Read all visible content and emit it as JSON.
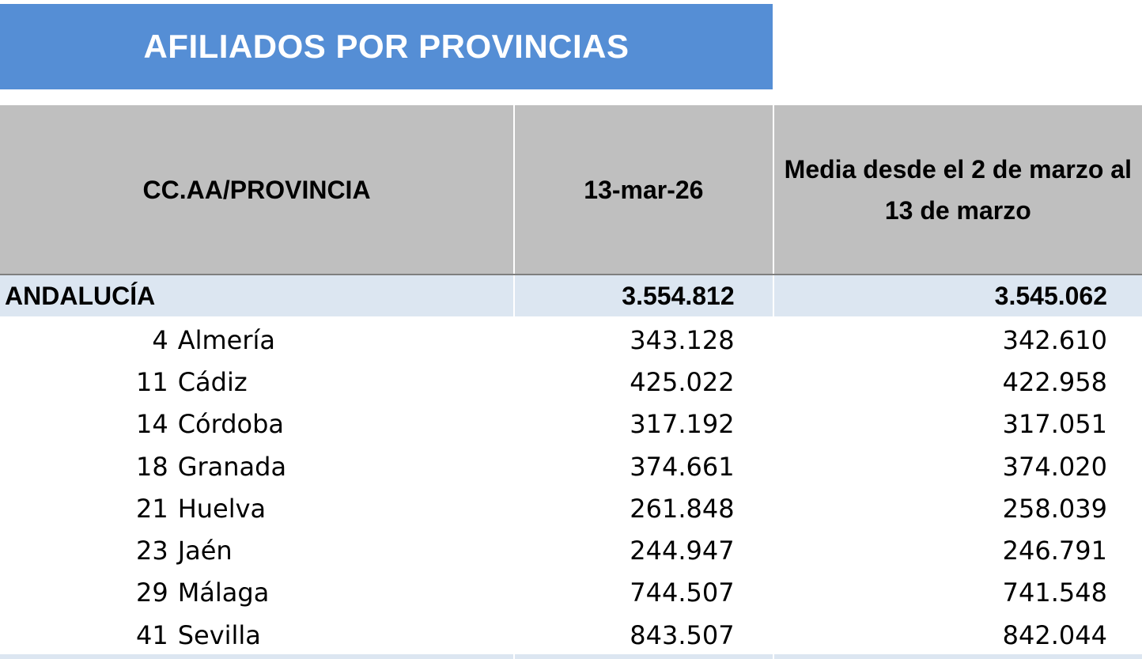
{
  "title": "AFILIADOS POR PROVINCIAS",
  "header": {
    "col1": "CC.AA/PROVINCIA",
    "col2": "13-mar-26",
    "col3": "Media desde el 2 de marzo al 13 de marzo"
  },
  "region": {
    "name": "ANDALUCÍA",
    "value_date": "3.554.812",
    "value_avg": "3.545.062"
  },
  "rows": [
    {
      "code": "4",
      "name": "Almería",
      "value_date": "343.128",
      "value_avg": "342.610"
    },
    {
      "code": "11",
      "name": "Cádiz",
      "value_date": "425.022",
      "value_avg": "422.958"
    },
    {
      "code": "14",
      "name": "Córdoba",
      "value_date": "317.192",
      "value_avg": "317.051"
    },
    {
      "code": "18",
      "name": "Granada",
      "value_date": "374.661",
      "value_avg": "374.020"
    },
    {
      "code": "21",
      "name": "Huelva",
      "value_date": "261.848",
      "value_avg": "258.039"
    },
    {
      "code": "23",
      "name": "Jaén",
      "value_date": "244.947",
      "value_avg": "246.791"
    },
    {
      "code": "29",
      "name": "Málaga",
      "value_date": "744.507",
      "value_avg": "741.548"
    },
    {
      "code": "41",
      "name": "Sevilla",
      "value_date": "843.507",
      "value_avg": "842.044"
    }
  ],
  "colors": {
    "title_band": "#558ed5",
    "header_fill": "#bfbfbf",
    "region_fill": "#dce6f1"
  }
}
